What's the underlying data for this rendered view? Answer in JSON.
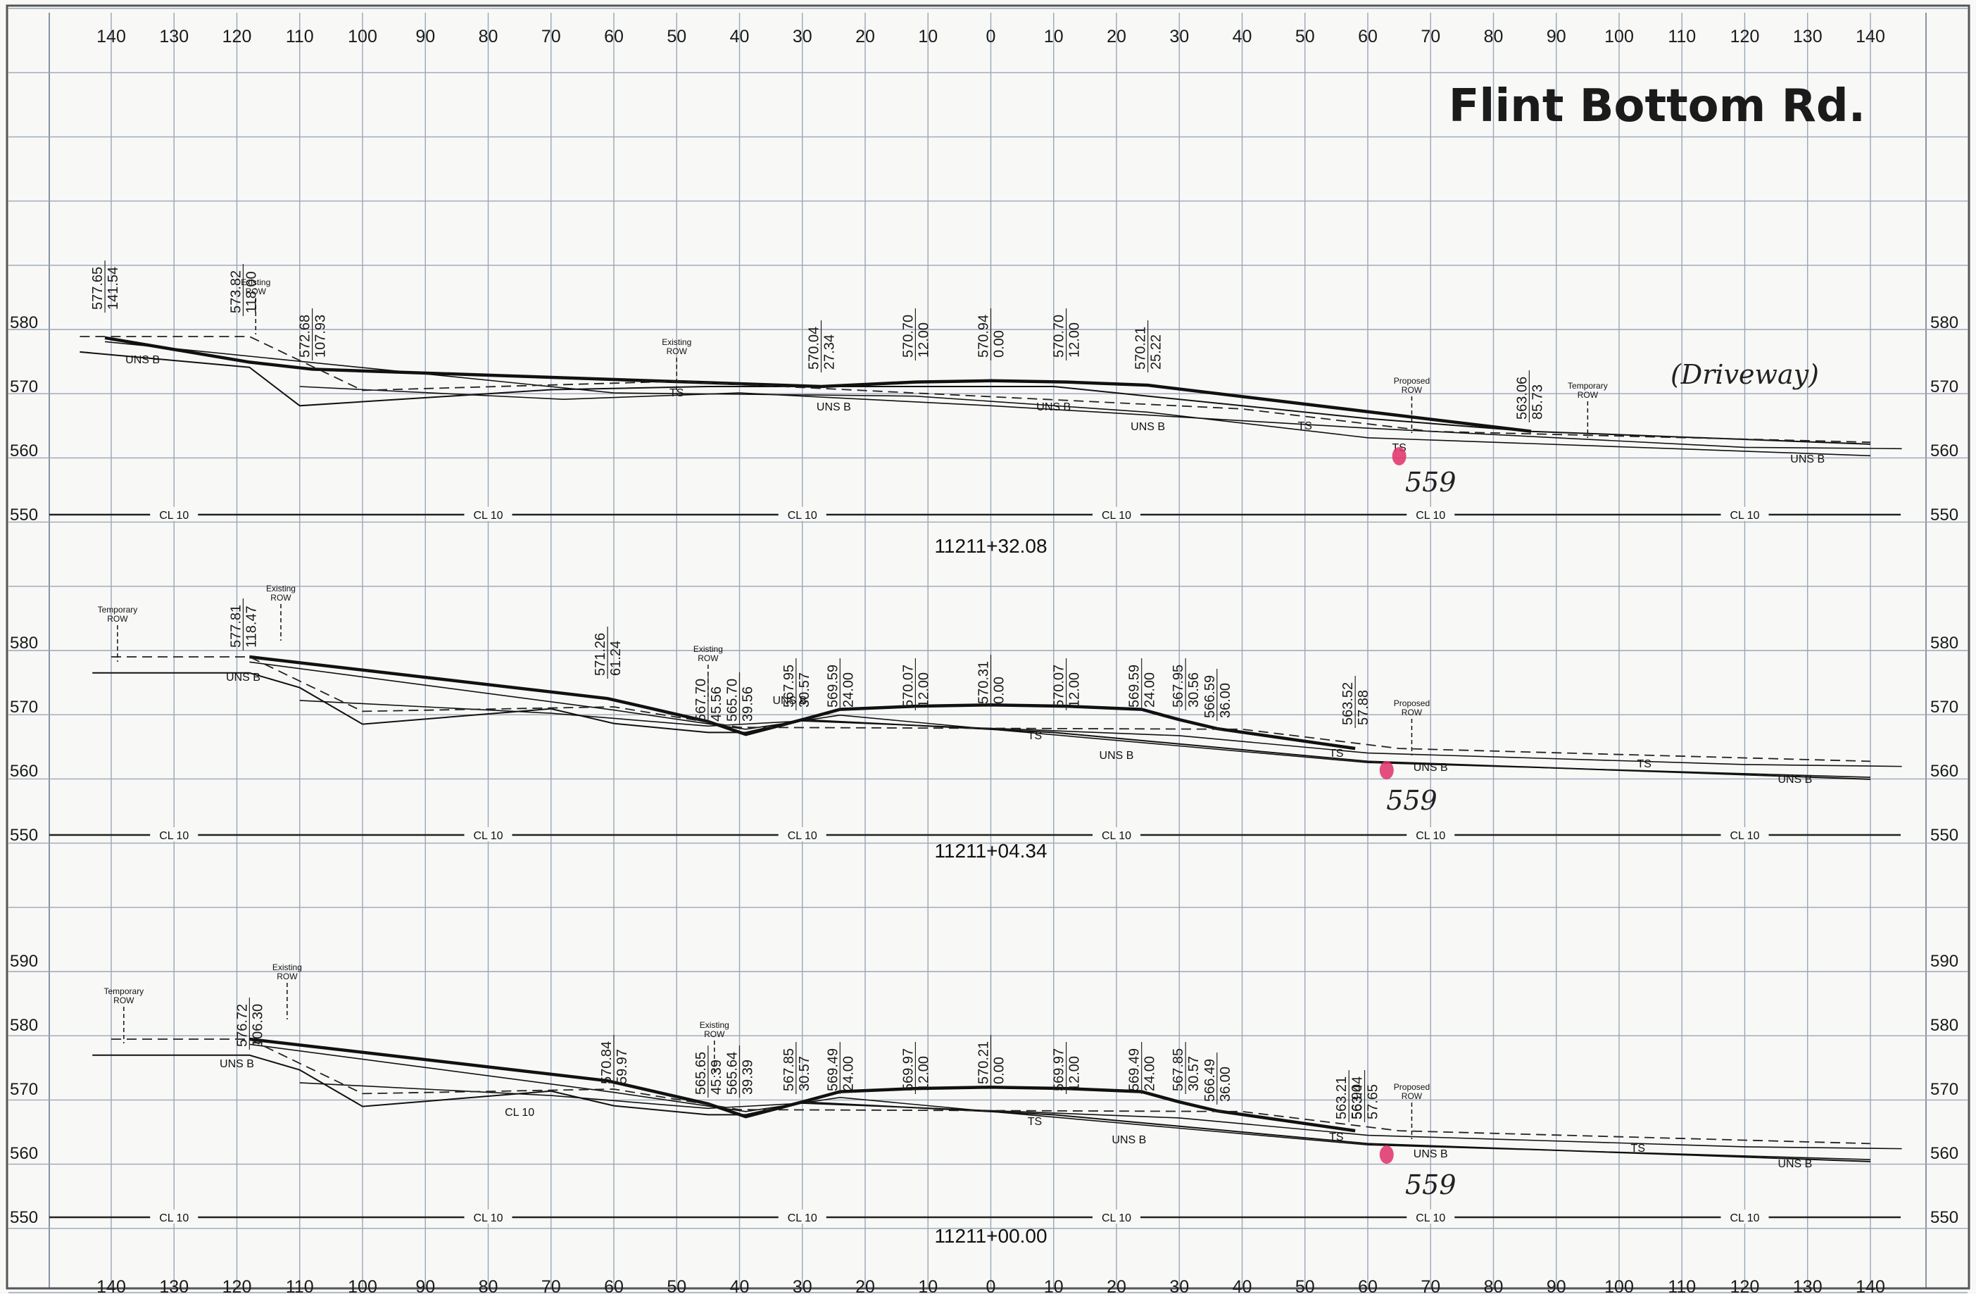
{
  "title": "Flint Bottom Rd.",
  "offsets_top": [
    "140",
    "130",
    "120",
    "110",
    "100",
    "90",
    "80",
    "70",
    "60",
    "50",
    "40",
    "30",
    "20",
    "10",
    "0",
    "10",
    "20",
    "30",
    "40",
    "50",
    "60",
    "70",
    "80",
    "90",
    "100",
    "110",
    "120",
    "130",
    "140"
  ],
  "offsets_bottom": [
    "140",
    "130",
    "120",
    "110",
    "100",
    "90",
    "80",
    "70",
    "60",
    "50",
    "40",
    "30",
    "20",
    "10",
    "0",
    "10",
    "20",
    "30",
    "40",
    "50",
    "60",
    "70",
    "80",
    "90",
    "100",
    "110",
    "120",
    "130",
    "140"
  ],
  "sections": [
    {
      "station": "11211+32.08",
      "elevations": [
        "580",
        "570",
        "560",
        "550"
      ],
      "centerline_label": "CL 10",
      "labels": [
        {
          "top": "577.65",
          "bottom": "141.54"
        },
        {
          "top": "573.82",
          "bottom": "118.00"
        },
        {
          "top": "572.68",
          "bottom": "107.93"
        },
        {
          "top": "570.04",
          "bottom": "27.34"
        },
        {
          "top": "570.70",
          "bottom": "12.00"
        },
        {
          "top": "570.94",
          "bottom": "0.00"
        },
        {
          "top": "570.70",
          "bottom": "12.00"
        },
        {
          "top": "570.21",
          "bottom": "25.22"
        },
        {
          "top": "563.06",
          "bottom": "85.73"
        }
      ],
      "row_tags": [
        "Existing ROW",
        "Existing ROW",
        "Proposed ROW",
        "Temporary ROW"
      ],
      "layers": [
        "UNS B",
        "TS",
        "UNS B",
        "UNS B",
        "TS",
        "UNS B",
        "TS",
        "UNS B"
      ],
      "handwritten": [
        "559",
        "(Driveway)"
      ]
    },
    {
      "station": "11211+04.34",
      "elevations": [
        "580",
        "570",
        "560",
        "550"
      ],
      "centerline_label": "CL 10",
      "labels": [
        {
          "top": "577.81",
          "bottom": "118.47"
        },
        {
          "top": "571.26",
          "bottom": "61.24"
        },
        {
          "top": "567.70",
          "bottom": "45.56"
        },
        {
          "top": "565.70",
          "bottom": "39.56"
        },
        {
          "top": "567.95",
          "bottom": "30.57"
        },
        {
          "top": "569.59",
          "bottom": "24.00"
        },
        {
          "top": "570.07",
          "bottom": "12.00"
        },
        {
          "top": "570.31",
          "bottom": "0.00"
        },
        {
          "top": "570.07",
          "bottom": "12.00"
        },
        {
          "top": "569.59",
          "bottom": "24.00"
        },
        {
          "top": "567.95",
          "bottom": "30.56"
        },
        {
          "top": "566.59",
          "bottom": "36.00"
        },
        {
          "top": "563.52",
          "bottom": "57.88"
        }
      ],
      "row_tags": [
        "Temporary ROW",
        "Existing ROW",
        "Existing ROW",
        "Proposed ROW"
      ],
      "layers": [
        "UNS B",
        "UNS B",
        "TS",
        "UNS B",
        "TS",
        "TS",
        "UNS B",
        "UNS B"
      ],
      "handwritten": [
        "559"
      ]
    },
    {
      "station": "11211+00.00",
      "elevations": [
        "590",
        "580",
        "570",
        "560",
        "550"
      ],
      "centerline_label": "CL 10",
      "labels": [
        {
          "top": "576.72",
          "bottom": "106.30"
        },
        {
          "top": "570.84",
          "bottom": "59.97"
        },
        {
          "top": "565.65",
          "bottom": "45.39"
        },
        {
          "top": "565.64",
          "bottom": "39.39"
        },
        {
          "top": "567.85",
          "bottom": "30.57"
        },
        {
          "top": "569.49",
          "bottom": "24.00"
        },
        {
          "top": "569.97",
          "bottom": "12.00"
        },
        {
          "top": "570.21",
          "bottom": "0.00"
        },
        {
          "top": "569.97",
          "bottom": "12.00"
        },
        {
          "top": "569.49",
          "bottom": "24.00"
        },
        {
          "top": "567.85",
          "bottom": "30.57"
        },
        {
          "top": "566.49",
          "bottom": "36.00"
        },
        {
          "top": "563.21",
          "bottom": "56.90"
        },
        {
          "top": "563.44",
          "bottom": "57.65"
        }
      ],
      "row_tags": [
        "Temporary ROW",
        "Existing ROW",
        "Existing ROW",
        "Proposed ROW"
      ],
      "layers": [
        "UNS B",
        "CL 10",
        "TS",
        "UNS B",
        "TS",
        "TS",
        "UNS B",
        "UNS B"
      ],
      "handwritten": [
        "559"
      ]
    }
  ],
  "colors": {
    "grid": "#9aa6b8",
    "ink": "#1a1a1a",
    "marker": "#e0306a"
  }
}
